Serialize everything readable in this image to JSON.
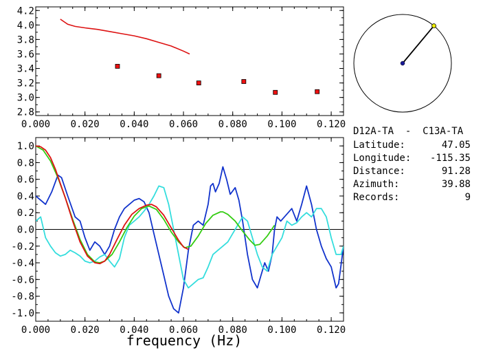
{
  "station_pair": "D12A-TA  -  C13A-TA",
  "info": [
    {
      "label": "Latitude:",
      "value": "47.05"
    },
    {
      "label": "Longitude:",
      "value": "-115.35"
    },
    {
      "label": "Distance:",
      "value": "91.28"
    },
    {
      "label": "Azimuth:",
      "value": "39.88"
    },
    {
      "label": "Records:",
      "value": "9"
    }
  ],
  "colors": {
    "red": "#dd1111",
    "blue": "#1133cc",
    "cyan": "#33dddd",
    "green": "#33cc11",
    "marker_fill": "#ee1111",
    "dial_dot": "#1a1a99",
    "dial_tip": "#eeee00"
  },
  "chart_data": [
    {
      "type": "scatter",
      "xlim": [
        0.0,
        0.125
      ],
      "ylim": [
        2.75,
        4.25
      ],
      "xticks": [
        "0.000",
        "0.020",
        "0.040",
        "0.060",
        "0.080",
        "0.100",
        "0.120"
      ],
      "yticks": [
        "2.8",
        "3.0",
        "3.2",
        "3.4",
        "3.6",
        "3.8",
        "4.0",
        "4.2"
      ],
      "line": {
        "x": [
          0.01,
          0.013,
          0.016,
          0.02,
          0.025,
          0.03,
          0.035,
          0.04,
          0.045,
          0.05,
          0.055,
          0.06,
          0.0625
        ],
        "y": [
          4.08,
          4.01,
          3.98,
          3.96,
          3.94,
          3.91,
          3.88,
          3.85,
          3.81,
          3.76,
          3.71,
          3.64,
          3.6
        ]
      },
      "points": {
        "x": [
          0.0332,
          0.05,
          0.0662,
          0.0845,
          0.0973,
          0.1143
        ],
        "y": [
          3.43,
          3.3,
          3.2,
          3.22,
          3.07,
          3.08
        ]
      }
    },
    {
      "type": "line",
      "xlim": [
        0.0,
        0.125
      ],
      "ylim": [
        -1.1,
        1.1
      ],
      "xticks": [
        "0.000",
        "0.020",
        "0.040",
        "0.060",
        "0.080",
        "0.100",
        "0.120"
      ],
      "yticks": [
        "1.0",
        "0.8",
        "0.6",
        "0.4",
        "0.2",
        "0.0",
        "-0.2",
        "-0.4",
        "-0.6",
        "-0.8",
        "-1.0"
      ],
      "xlabel": "frequency (Hz)",
      "series": [
        {
          "color": "blue",
          "x": [
            0,
            0.002,
            0.004,
            0.0065,
            0.009,
            0.0105,
            0.013,
            0.016,
            0.018,
            0.02,
            0.022,
            0.024,
            0.026,
            0.028,
            0.03,
            0.032,
            0.034,
            0.036,
            0.038,
            0.04,
            0.042,
            0.044,
            0.046,
            0.048,
            0.05,
            0.052,
            0.054,
            0.056,
            0.058,
            0.06,
            0.062,
            0.064,
            0.066,
            0.068,
            0.07,
            0.071,
            0.072,
            0.073,
            0.0745,
            0.076,
            0.0775,
            0.079,
            0.081,
            0.0825,
            0.084,
            0.086,
            0.088,
            0.09,
            0.0915,
            0.093,
            0.0945,
            0.096,
            0.097,
            0.098,
            0.0995,
            0.101,
            0.1025,
            0.104,
            0.106,
            0.108,
            0.11,
            0.112,
            0.114,
            0.116,
            0.118,
            0.12,
            0.122,
            0.123,
            0.125
          ],
          "y": [
            0.4,
            0.35,
            0.3,
            0.45,
            0.65,
            0.62,
            0.4,
            0.15,
            0.1,
            -0.1,
            -0.25,
            -0.15,
            -0.2,
            -0.3,
            -0.2,
            0.0,
            0.15,
            0.25,
            0.3,
            0.35,
            0.37,
            0.33,
            0.2,
            -0.05,
            -0.3,
            -0.55,
            -0.8,
            -0.95,
            -1.0,
            -0.7,
            -0.25,
            0.05,
            0.1,
            0.05,
            0.3,
            0.52,
            0.55,
            0.45,
            0.55,
            0.75,
            0.6,
            0.42,
            0.5,
            0.35,
            0.1,
            -0.3,
            -0.6,
            -0.7,
            -0.55,
            -0.4,
            -0.5,
            -0.3,
            0.0,
            0.15,
            0.1,
            0.15,
            0.2,
            0.25,
            0.1,
            0.3,
            0.52,
            0.3,
            0.0,
            -0.2,
            -0.35,
            -0.45,
            -0.7,
            -0.65,
            -0.2
          ]
        },
        {
          "color": "cyan",
          "x": [
            0,
            0.002,
            0.004,
            0.006,
            0.008,
            0.01,
            0.012,
            0.014,
            0.016,
            0.018,
            0.02,
            0.022,
            0.024,
            0.026,
            0.028,
            0.03,
            0.032,
            0.034,
            0.036,
            0.038,
            0.04,
            0.042,
            0.044,
            0.046,
            0.048,
            0.05,
            0.052,
            0.054,
            0.056,
            0.058,
            0.06,
            0.062,
            0.064,
            0.066,
            0.068,
            0.07,
            0.072,
            0.074,
            0.076,
            0.078,
            0.08,
            0.082,
            0.084,
            0.086,
            0.088,
            0.09,
            0.092,
            0.094,
            0.096,
            0.098,
            0.1,
            0.102,
            0.104,
            0.106,
            0.108,
            0.11,
            0.112,
            0.114,
            0.116,
            0.118,
            0.12,
            0.122,
            0.124,
            0.125
          ],
          "y": [
            0.1,
            0.15,
            -0.1,
            -0.2,
            -0.28,
            -0.32,
            -0.3,
            -0.25,
            -0.28,
            -0.32,
            -0.38,
            -0.4,
            -0.38,
            -0.33,
            -0.3,
            -0.38,
            -0.45,
            -0.35,
            -0.1,
            0.05,
            0.1,
            0.15,
            0.22,
            0.3,
            0.4,
            0.52,
            0.5,
            0.3,
            0.0,
            -0.3,
            -0.6,
            -0.7,
            -0.65,
            -0.6,
            -0.58,
            -0.45,
            -0.3,
            -0.25,
            -0.2,
            -0.15,
            -0.05,
            0.05,
            0.15,
            0.1,
            -0.1,
            -0.3,
            -0.45,
            -0.5,
            -0.3,
            -0.2,
            -0.1,
            0.1,
            0.05,
            0.08,
            0.15,
            0.2,
            0.15,
            0.25,
            0.25,
            0.15,
            -0.1,
            -0.3,
            -0.3,
            -0.2
          ]
        },
        {
          "color": "green",
          "x": [
            0,
            0.003,
            0.006,
            0.009,
            0.012,
            0.015,
            0.018,
            0.021,
            0.024,
            0.026,
            0.028,
            0.031,
            0.034,
            0.037,
            0.04,
            0.043,
            0.046,
            0.049,
            0.052,
            0.055,
            0.058,
            0.0605,
            0.063,
            0.066,
            0.069,
            0.072,
            0.075,
            0.076,
            0.078,
            0.081,
            0.084,
            0.087,
            0.089,
            0.091,
            0.094,
            0.097
          ],
          "y": [
            1.0,
            0.95,
            0.82,
            0.62,
            0.38,
            0.12,
            -0.12,
            -0.3,
            -0.39,
            -0.4,
            -0.38,
            -0.3,
            -0.15,
            0.02,
            0.16,
            0.25,
            0.28,
            0.24,
            0.12,
            -0.03,
            -0.15,
            -0.22,
            -0.2,
            -0.08,
            0.07,
            0.17,
            0.21,
            0.21,
            0.18,
            0.1,
            -0.02,
            -0.13,
            -0.19,
            -0.18,
            -0.08,
            0.05
          ]
        },
        {
          "color": "red",
          "x": [
            0,
            0.002,
            0.004,
            0.006,
            0.008,
            0.01,
            0.012,
            0.015,
            0.018,
            0.021,
            0.024,
            0.026,
            0.028,
            0.03,
            0.033,
            0.036,
            0.039,
            0.042,
            0.045,
            0.047,
            0.049,
            0.052,
            0.055,
            0.058,
            0.06,
            0.062
          ],
          "y": [
            1.0,
            0.99,
            0.95,
            0.86,
            0.72,
            0.55,
            0.38,
            0.1,
            -0.15,
            -0.32,
            -0.4,
            -0.41,
            -0.38,
            -0.3,
            -0.12,
            0.05,
            0.18,
            0.25,
            0.29,
            0.3,
            0.27,
            0.17,
            0.02,
            -0.13,
            -0.21,
            -0.24
          ]
        }
      ]
    }
  ],
  "dial": {
    "azimuth_deg": 39.88
  }
}
